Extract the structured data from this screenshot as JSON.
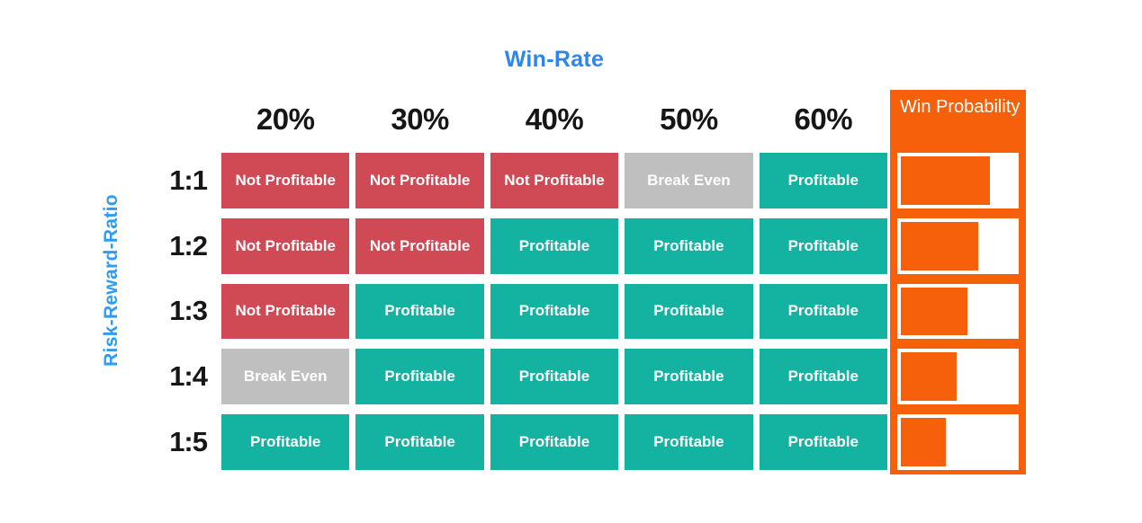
{
  "chart_data": {
    "type": "heatmap",
    "title": "Win-Rate",
    "xlabel": "Win-Rate",
    "ylabel": "Risk-Reward-Ratio",
    "x_categories": [
      "20%",
      "30%",
      "40%",
      "50%",
      "60%"
    ],
    "y_categories": [
      "1:1",
      "1:2",
      "1:3",
      "1:4",
      "1:5"
    ],
    "values": [
      [
        "Not Profitable",
        "Not Profitable",
        "Not Profitable",
        "Break Even",
        "Profitable"
      ],
      [
        "Not Profitable",
        "Not Profitable",
        "Profitable",
        "Profitable",
        "Profitable"
      ],
      [
        "Not Profitable",
        "Profitable",
        "Profitable",
        "Profitable",
        "Profitable"
      ],
      [
        "Break Even",
        "Profitable",
        "Profitable",
        "Profitable",
        "Profitable"
      ],
      [
        "Profitable",
        "Profitable",
        "Profitable",
        "Profitable",
        "Profitable"
      ]
    ],
    "legend": [
      {
        "label": "Not Profitable",
        "color": "#D04A55"
      },
      {
        "label": "Break Even",
        "color": "#BFBFBF"
      },
      {
        "label": "Profitable",
        "color": "#14B3A1"
      }
    ],
    "legend_position": "none",
    "grid": false,
    "right_panel": {
      "title": "Win Probability",
      "type": "bar",
      "bars_pct": [
        78,
        68,
        58,
        49,
        39
      ],
      "bar_color": "#F6600A",
      "panel_color": "#F6600A"
    }
  },
  "colors": {
    "title_blue": "#2E86ED",
    "axis_label_blue": "#2D9CF4",
    "not_profitable_red": "#D04A55",
    "break_even_gray": "#BFBFBF",
    "profitable_teal": "#14B3A1",
    "win_probability_orange": "#F6600A",
    "header_text_black": "#161616",
    "background": "#FFFFFF"
  }
}
